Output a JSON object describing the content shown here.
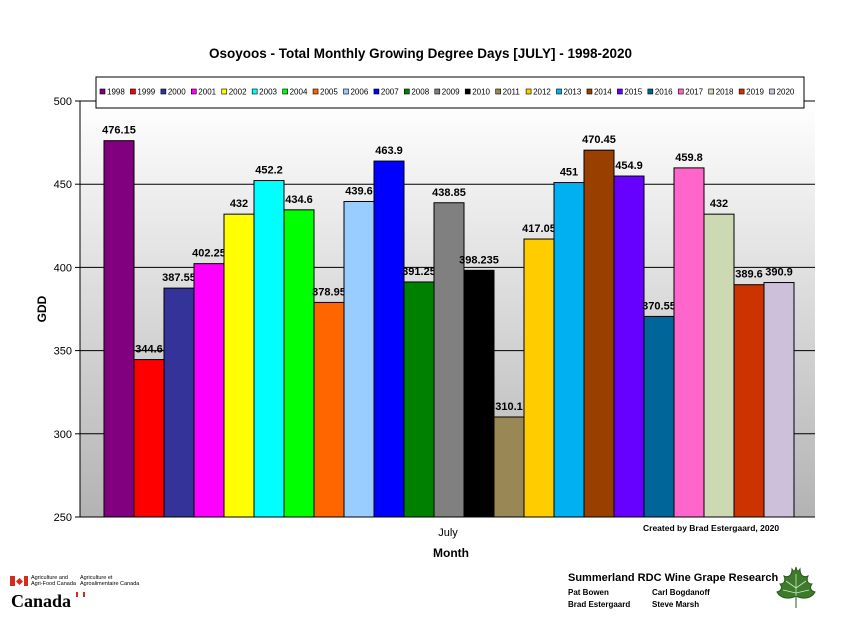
{
  "chart_data": {
    "type": "bar",
    "title": "Osoyoos - Total Monthly Growing Degree Days [JULY] - 1998-2020",
    "xlabel": "Month",
    "ylabel": "GDD",
    "categories": [
      "July"
    ],
    "ylim": [
      250,
      500
    ],
    "yticks": [
      250,
      300,
      350,
      400,
      450,
      500
    ],
    "grid": true,
    "legend_position": "top",
    "series": [
      {
        "name": "1998",
        "values": [
          476.15
        ],
        "label": "476.15",
        "color": "#800080"
      },
      {
        "name": "1999",
        "values": [
          344.6
        ],
        "label": "344.6",
        "color": "#ff0000"
      },
      {
        "name": "2000",
        "values": [
          387.55
        ],
        "label": "387.55",
        "color": "#333399"
      },
      {
        "name": "2001",
        "values": [
          402.25
        ],
        "label": "402.25",
        "color": "#ff00ff"
      },
      {
        "name": "2002",
        "values": [
          432
        ],
        "label": "432",
        "color": "#ffff00"
      },
      {
        "name": "2003",
        "values": [
          452.2
        ],
        "label": "452.2",
        "color": "#00ffff"
      },
      {
        "name": "2004",
        "values": [
          434.6
        ],
        "label": "434.6",
        "color": "#00ff00"
      },
      {
        "name": "2005",
        "values": [
          378.95
        ],
        "label": "378.95",
        "color": "#ff6600"
      },
      {
        "name": "2006",
        "values": [
          439.6
        ],
        "label": "439.6",
        "color": "#99ccff"
      },
      {
        "name": "2007",
        "values": [
          463.9
        ],
        "label": "463.9",
        "color": "#0000ff"
      },
      {
        "name": "2008",
        "values": [
          391.25
        ],
        "label": "391.25",
        "color": "#008000"
      },
      {
        "name": "2009",
        "values": [
          438.85
        ],
        "label": "438.85",
        "color": "#808080"
      },
      {
        "name": "2010",
        "values": [
          398.235
        ],
        "label": "398.235",
        "color": "#000000"
      },
      {
        "name": "2011",
        "values": [
          310.1
        ],
        "label": "310.1",
        "color": "#998855"
      },
      {
        "name": "2012",
        "values": [
          417.05
        ],
        "label": "417.05",
        "color": "#ffcc00"
      },
      {
        "name": "2013",
        "values": [
          451
        ],
        "label": "451",
        "color": "#00b0f0"
      },
      {
        "name": "2014",
        "values": [
          470.45
        ],
        "label": "470.45",
        "color": "#993f00"
      },
      {
        "name": "2015",
        "values": [
          454.9
        ],
        "label": "454.9",
        "color": "#6600ff"
      },
      {
        "name": "2016",
        "values": [
          370.55
        ],
        "label": "370.55",
        "color": "#006699"
      },
      {
        "name": "2017",
        "values": [
          459.8
        ],
        "label": "459.8",
        "color": "#ff66cc"
      },
      {
        "name": "2018",
        "values": [
          432
        ],
        "label": "432",
        "color": "#ccd9b3"
      },
      {
        "name": "2019",
        "values": [
          389.6
        ],
        "label": "389.6",
        "color": "#cc3300"
      },
      {
        "name": "2020",
        "values": [
          390.9
        ],
        "label": "390.9",
        "color": "#ccc0da"
      }
    ]
  },
  "credit": "Created by Brad Estergaard, 2020",
  "logo": {
    "department_en": "Agriculture and Agri-Food Canada",
    "department_fr": "Agriculture et Agroalimentaire Canada",
    "wordmark": "Canada"
  },
  "research": {
    "title": "Summerland RDC Wine Grape Research",
    "people": [
      "Pat Bowen",
      "Carl Bogdanoff",
      "Brad Estergaard",
      "Steve Marsh"
    ],
    "leaf_icon": "grape-leaf-icon",
    "leaf_color": "#3d7a2a"
  }
}
